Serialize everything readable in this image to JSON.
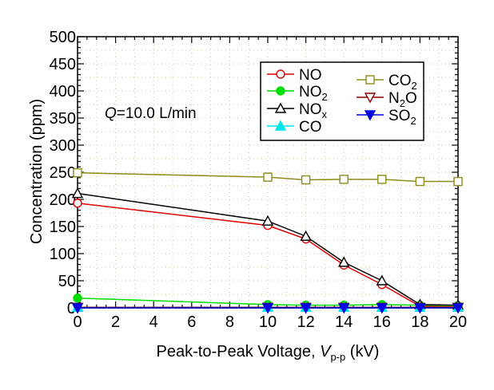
{
  "chart_data": {
    "type": "line",
    "xlabel": "Peak-to-Peak Voltage, ",
    "xlabel_var": "V",
    "xlabel_sub": "p-p",
    "xlabel_unit": " (kV)",
    "ylabel": "Concentration  (ppm)",
    "xlim": [
      0,
      20
    ],
    "ylim": [
      0,
      500
    ],
    "xticks": [
      0,
      2,
      4,
      6,
      8,
      10,
      12,
      14,
      16,
      18,
      20
    ],
    "yticks": [
      0,
      50,
      100,
      150,
      200,
      250,
      300,
      350,
      400,
      450,
      500
    ],
    "grid": true,
    "legend_position": "top-right",
    "annotation": {
      "var": "Q",
      "text": "=10.0 L/min"
    },
    "x": [
      0,
      10,
      12,
      14,
      16,
      18,
      20
    ],
    "series": [
      {
        "name": "NO",
        "label_main": "NO",
        "label_sub": "",
        "color": "#e00000",
        "marker": "circle-open",
        "values": [
          193,
          152,
          127,
          79,
          43,
          3,
          2
        ]
      },
      {
        "name": "NO2",
        "label_main": "NO",
        "label_sub": "2",
        "color": "#00dd00",
        "marker": "circle-filled",
        "values": [
          18,
          6,
          5,
          5,
          6,
          5,
          4
        ]
      },
      {
        "name": "NOx",
        "label_main": "NO",
        "label_sub": "x",
        "color": "#000000",
        "marker": "triangle-up-open",
        "values": [
          211,
          160,
          132,
          84,
          50,
          6,
          5
        ]
      },
      {
        "name": "CO",
        "label_main": "CO",
        "label_sub": "",
        "color": "#00e5ee",
        "marker": "triangle-up-filled",
        "values": [
          1,
          1,
          1,
          1,
          1,
          1,
          1
        ]
      },
      {
        "name": "CO2",
        "label_main": "CO",
        "label_sub": "2",
        "color": "#8c8c1a",
        "marker": "square-open",
        "values": [
          249,
          241,
          236,
          237,
          237,
          233,
          233
        ]
      },
      {
        "name": "N2O",
        "label_main": "N",
        "label_sub": "2",
        "label_tail": "O",
        "color": "#8b0000",
        "marker": "triangle-down-open",
        "values": [
          1,
          1,
          1,
          1,
          1,
          1,
          1
        ]
      },
      {
        "name": "SO2",
        "label_main": "SO",
        "label_sub": "2",
        "color": "#0000e0",
        "marker": "triangle-down-filled",
        "values": [
          0,
          0,
          0,
          0,
          0,
          0,
          0
        ]
      }
    ]
  }
}
